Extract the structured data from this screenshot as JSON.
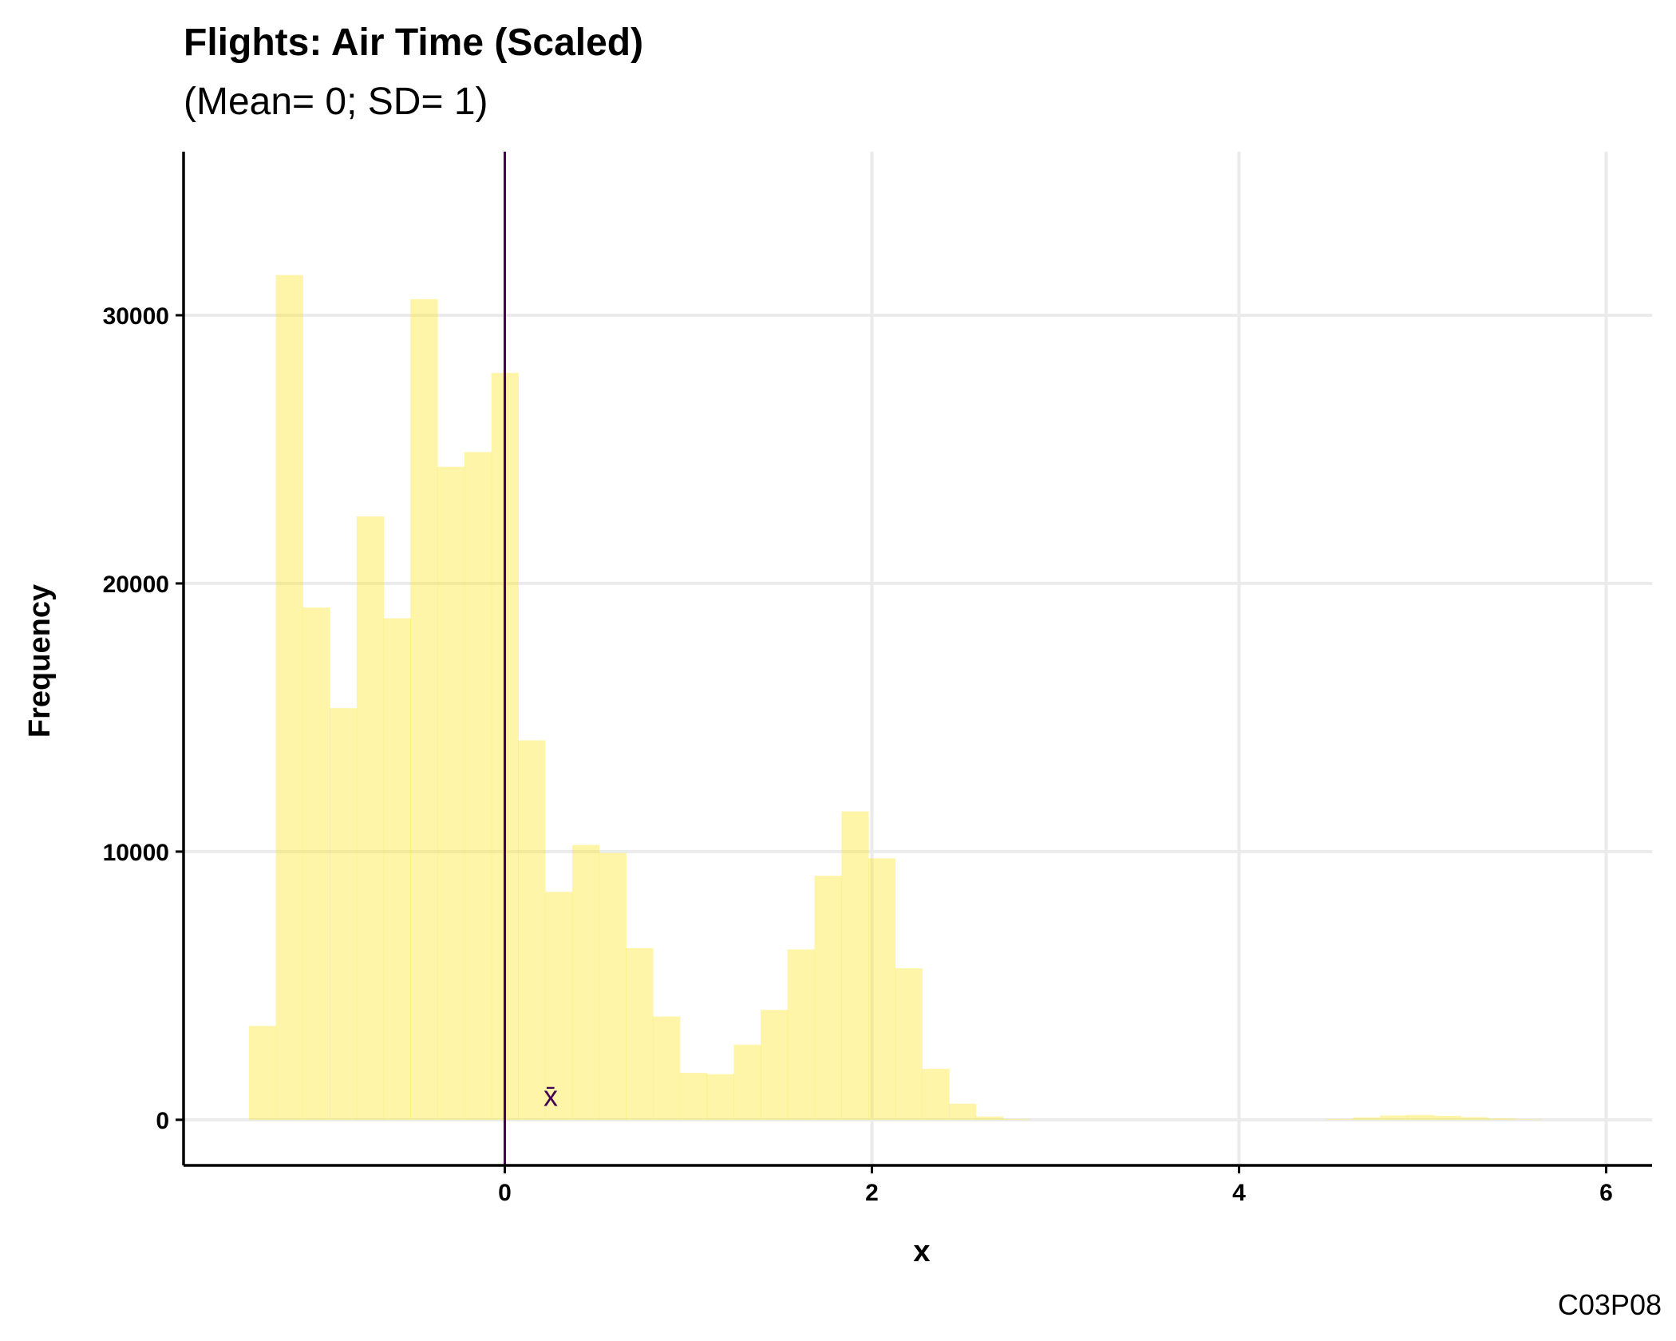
{
  "chart_data": {
    "type": "bar",
    "title": "Flights: Air Time (Scaled)",
    "subtitle": "(Mean= 0; SD= 1)",
    "xlabel": "x",
    "ylabel": "Frequency",
    "caption": "C03P08",
    "xlim": [
      -1.75,
      6.25
    ],
    "ylim": [
      -1700,
      36100
    ],
    "x_ticks": [
      0,
      2,
      4,
      6
    ],
    "y_ticks": [
      0,
      10000,
      20000,
      30000
    ],
    "y_tick_labels": [
      "0",
      "10000",
      "20000",
      "30000"
    ],
    "grid": true,
    "bin_width": 0.1467,
    "bins": [
      {
        "x0": -1.394,
        "count": 3500
      },
      {
        "x0": -1.247,
        "count": 31500
      },
      {
        "x0": -1.1,
        "count": 19100
      },
      {
        "x0": -0.954,
        "count": 15350
      },
      {
        "x0": -0.807,
        "count": 22500
      },
      {
        "x0": -0.66,
        "count": 18700
      },
      {
        "x0": -0.514,
        "count": 30600
      },
      {
        "x0": -0.367,
        "count": 24350
      },
      {
        "x0": -0.22,
        "count": 24900
      },
      {
        "x0": -0.073,
        "count": 27850
      },
      {
        "x0": 0.073,
        "count": 14150
      },
      {
        "x0": 0.22,
        "count": 8500
      },
      {
        "x0": 0.367,
        "count": 10250
      },
      {
        "x0": 0.514,
        "count": 9950
      },
      {
        "x0": 0.66,
        "count": 6400
      },
      {
        "x0": 0.807,
        "count": 3850
      },
      {
        "x0": 0.954,
        "count": 1750
      },
      {
        "x0": 1.1,
        "count": 1700
      },
      {
        "x0": 1.247,
        "count": 2800
      },
      {
        "x0": 1.394,
        "count": 4100
      },
      {
        "x0": 1.54,
        "count": 6350
      },
      {
        "x0": 1.687,
        "count": 9100
      },
      {
        "x0": 1.834,
        "count": 11500
      },
      {
        "x0": 1.98,
        "count": 9750
      },
      {
        "x0": 2.127,
        "count": 5650
      },
      {
        "x0": 2.274,
        "count": 1900
      },
      {
        "x0": 2.42,
        "count": 600
      },
      {
        "x0": 2.567,
        "count": 120
      },
      {
        "x0": 2.714,
        "count": 30
      },
      {
        "x0": 4.474,
        "count": 30
      },
      {
        "x0": 4.621,
        "count": 90
      },
      {
        "x0": 4.768,
        "count": 160
      },
      {
        "x0": 4.914,
        "count": 180
      },
      {
        "x0": 5.061,
        "count": 150
      },
      {
        "x0": 5.208,
        "count": 100
      },
      {
        "x0": 5.354,
        "count": 50
      },
      {
        "x0": 5.501,
        "count": 20
      }
    ],
    "mean_line": {
      "x": 0,
      "label": "x̄",
      "label_at": {
        "x": 0.25,
        "y": 900
      }
    },
    "colors": {
      "bars": "#FDE725",
      "mean_line": "#440154",
      "grid": "#EBEBEB",
      "axis": "#000000"
    },
    "bar_opacity": 0.4
  }
}
